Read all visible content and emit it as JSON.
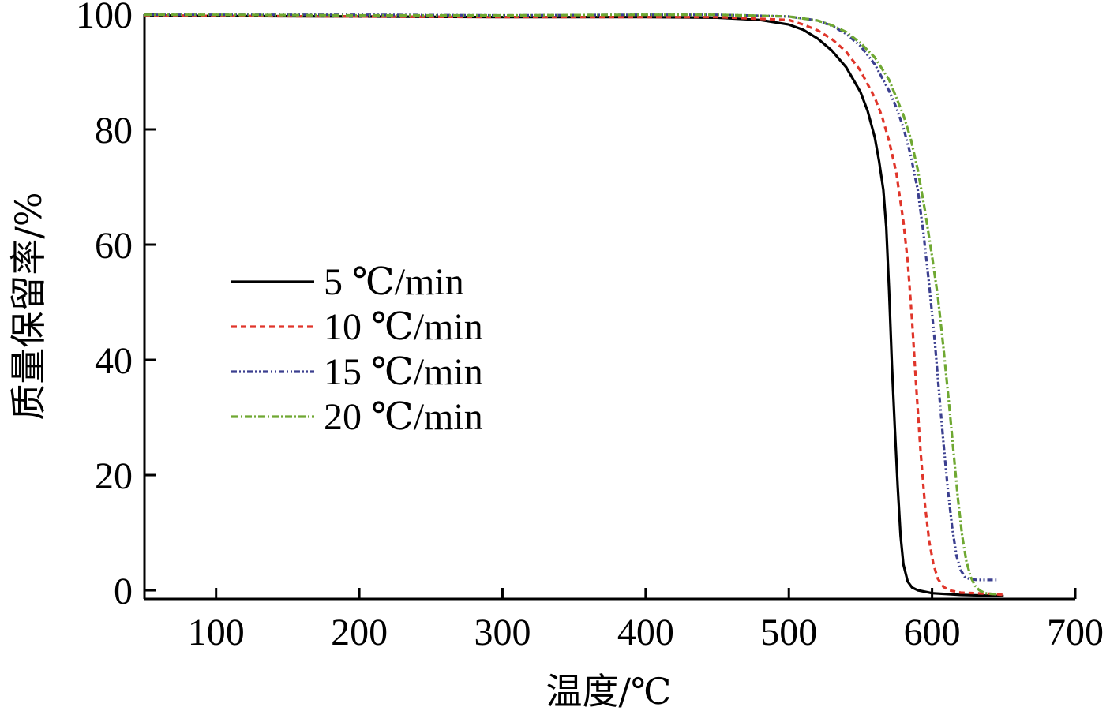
{
  "chart_data": {
    "type": "line",
    "xlabel": "温度/℃",
    "ylabel": "质量保留率/%",
    "xlim": [
      50,
      700
    ],
    "ylim": [
      -1.5,
      100
    ],
    "xticks": [
      100,
      200,
      300,
      400,
      500,
      600,
      700
    ],
    "yticks": [
      0,
      20,
      40,
      60,
      80,
      100
    ],
    "grid": false,
    "legend_position": "center-left",
    "series": [
      {
        "name": "5 ℃/min",
        "color": "#000000",
        "dash": "solid",
        "x": [
          50,
          100,
          200,
          300,
          400,
          450,
          480,
          500,
          510,
          520,
          530,
          540,
          550,
          555,
          560,
          563,
          566,
          568,
          570,
          572,
          574,
          576,
          578,
          580,
          583,
          586,
          590,
          600,
          620,
          650
        ],
        "y": [
          99.8,
          99.7,
          99.6,
          99.5,
          99.5,
          99.4,
          99.0,
          98.2,
          97.3,
          95.8,
          93.7,
          90.8,
          86.5,
          83.2,
          78.6,
          74.5,
          69.5,
          63.0,
          52.0,
          39.0,
          28.0,
          18.0,
          9.5,
          4.5,
          1.5,
          0.5,
          0.0,
          -0.5,
          -0.8,
          -1.0
        ]
      },
      {
        "name": "10 ℃/min",
        "color": "#e0352a",
        "dash": "short",
        "x": [
          50,
          100,
          200,
          300,
          400,
          450,
          500,
          510,
          520,
          530,
          540,
          550,
          560,
          565,
          570,
          575,
          580,
          583,
          586,
          589,
          592,
          595,
          598,
          601,
          604,
          608,
          612,
          620,
          640,
          650
        ],
        "y": [
          99.8,
          99.7,
          99.6,
          99.5,
          99.5,
          99.5,
          99.0,
          98.2,
          97.2,
          95.7,
          93.5,
          90.2,
          85.5,
          82.3,
          78.0,
          72.5,
          64.0,
          57.0,
          47.0,
          35.0,
          24.0,
          15.0,
          8.5,
          4.5,
          2.0,
          0.6,
          0.0,
          -0.4,
          -0.6,
          -0.8
        ]
      },
      {
        "name": "15 ℃/min",
        "color": "#3b3f8f",
        "dash": "dashdotdot",
        "x": [
          50,
          100,
          200,
          300,
          400,
          450,
          500,
          520,
          530,
          540,
          550,
          560,
          570,
          575,
          580,
          585,
          590,
          594,
          598,
          602,
          605,
          608,
          611,
          614,
          617,
          620,
          623,
          627,
          632,
          645
        ],
        "y": [
          99.9,
          99.9,
          99.9,
          99.8,
          99.9,
          99.9,
          99.6,
          98.9,
          98.0,
          96.6,
          94.5,
          91.3,
          86.7,
          83.8,
          80.3,
          75.6,
          69.5,
          62.0,
          53.0,
          43.0,
          34.0,
          25.5,
          17.5,
          11.0,
          6.0,
          3.5,
          2.3,
          1.9,
          1.8,
          1.8
        ]
      },
      {
        "name": "20 ℃/min",
        "color": "#6fa832",
        "dash": "dashdot",
        "x": [
          50,
          100,
          200,
          300,
          400,
          450,
          500,
          520,
          530,
          540,
          550,
          560,
          570,
          580,
          585,
          590,
          595,
          600,
          604,
          608,
          612,
          615,
          618,
          621,
          624,
          627,
          630,
          633,
          637,
          645
        ],
        "y": [
          99.9,
          99.9,
          99.8,
          99.8,
          99.9,
          99.9,
          99.6,
          98.9,
          98.1,
          96.9,
          95.0,
          92.5,
          88.6,
          82.5,
          78.5,
          73.0,
          66.0,
          58.0,
          51.0,
          42.0,
          32.0,
          24.0,
          16.0,
          9.5,
          5.0,
          2.3,
          0.8,
          0.0,
          -0.5,
          -0.7
        ]
      }
    ]
  }
}
